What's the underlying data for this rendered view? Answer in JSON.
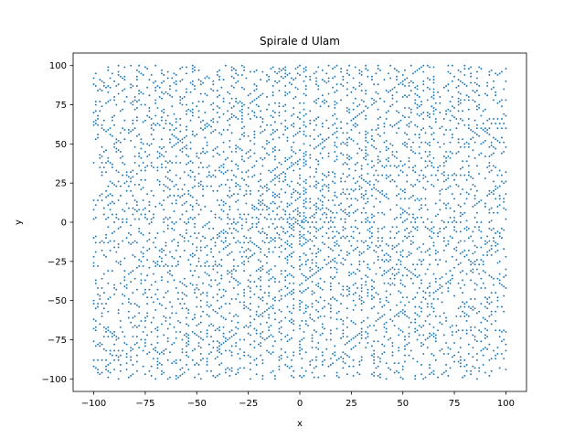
{
  "chart_data": {
    "type": "scatter",
    "title": "Spirale d Ulam",
    "xlabel": "x",
    "ylabel": "y",
    "xlim": [
      -110,
      110
    ],
    "ylim": [
      -108,
      108
    ],
    "xticks": [
      -100,
      -75,
      -50,
      -25,
      0,
      25,
      50,
      75,
      100
    ],
    "xtick_labels": [
      "−100",
      "−75",
      "−50",
      "−25",
      "0",
      "25",
      "50",
      "75",
      "100"
    ],
    "yticks": [
      -100,
      -75,
      -50,
      -25,
      0,
      25,
      50,
      75,
      100
    ],
    "ytick_labels": [
      "−100",
      "−75",
      "−50",
      "−25",
      "0",
      "25",
      "50",
      "75",
      "100"
    ],
    "grid": false,
    "legend": "none",
    "series": [
      {
        "description": "prime numbers placed on an Ulam spiral, integer coordinates from -100 to 100",
        "x_range": [
          -100,
          100
        ],
        "y_range": [
          -100,
          100
        ],
        "color": "#1f77b4",
        "marker": "point"
      }
    ]
  }
}
